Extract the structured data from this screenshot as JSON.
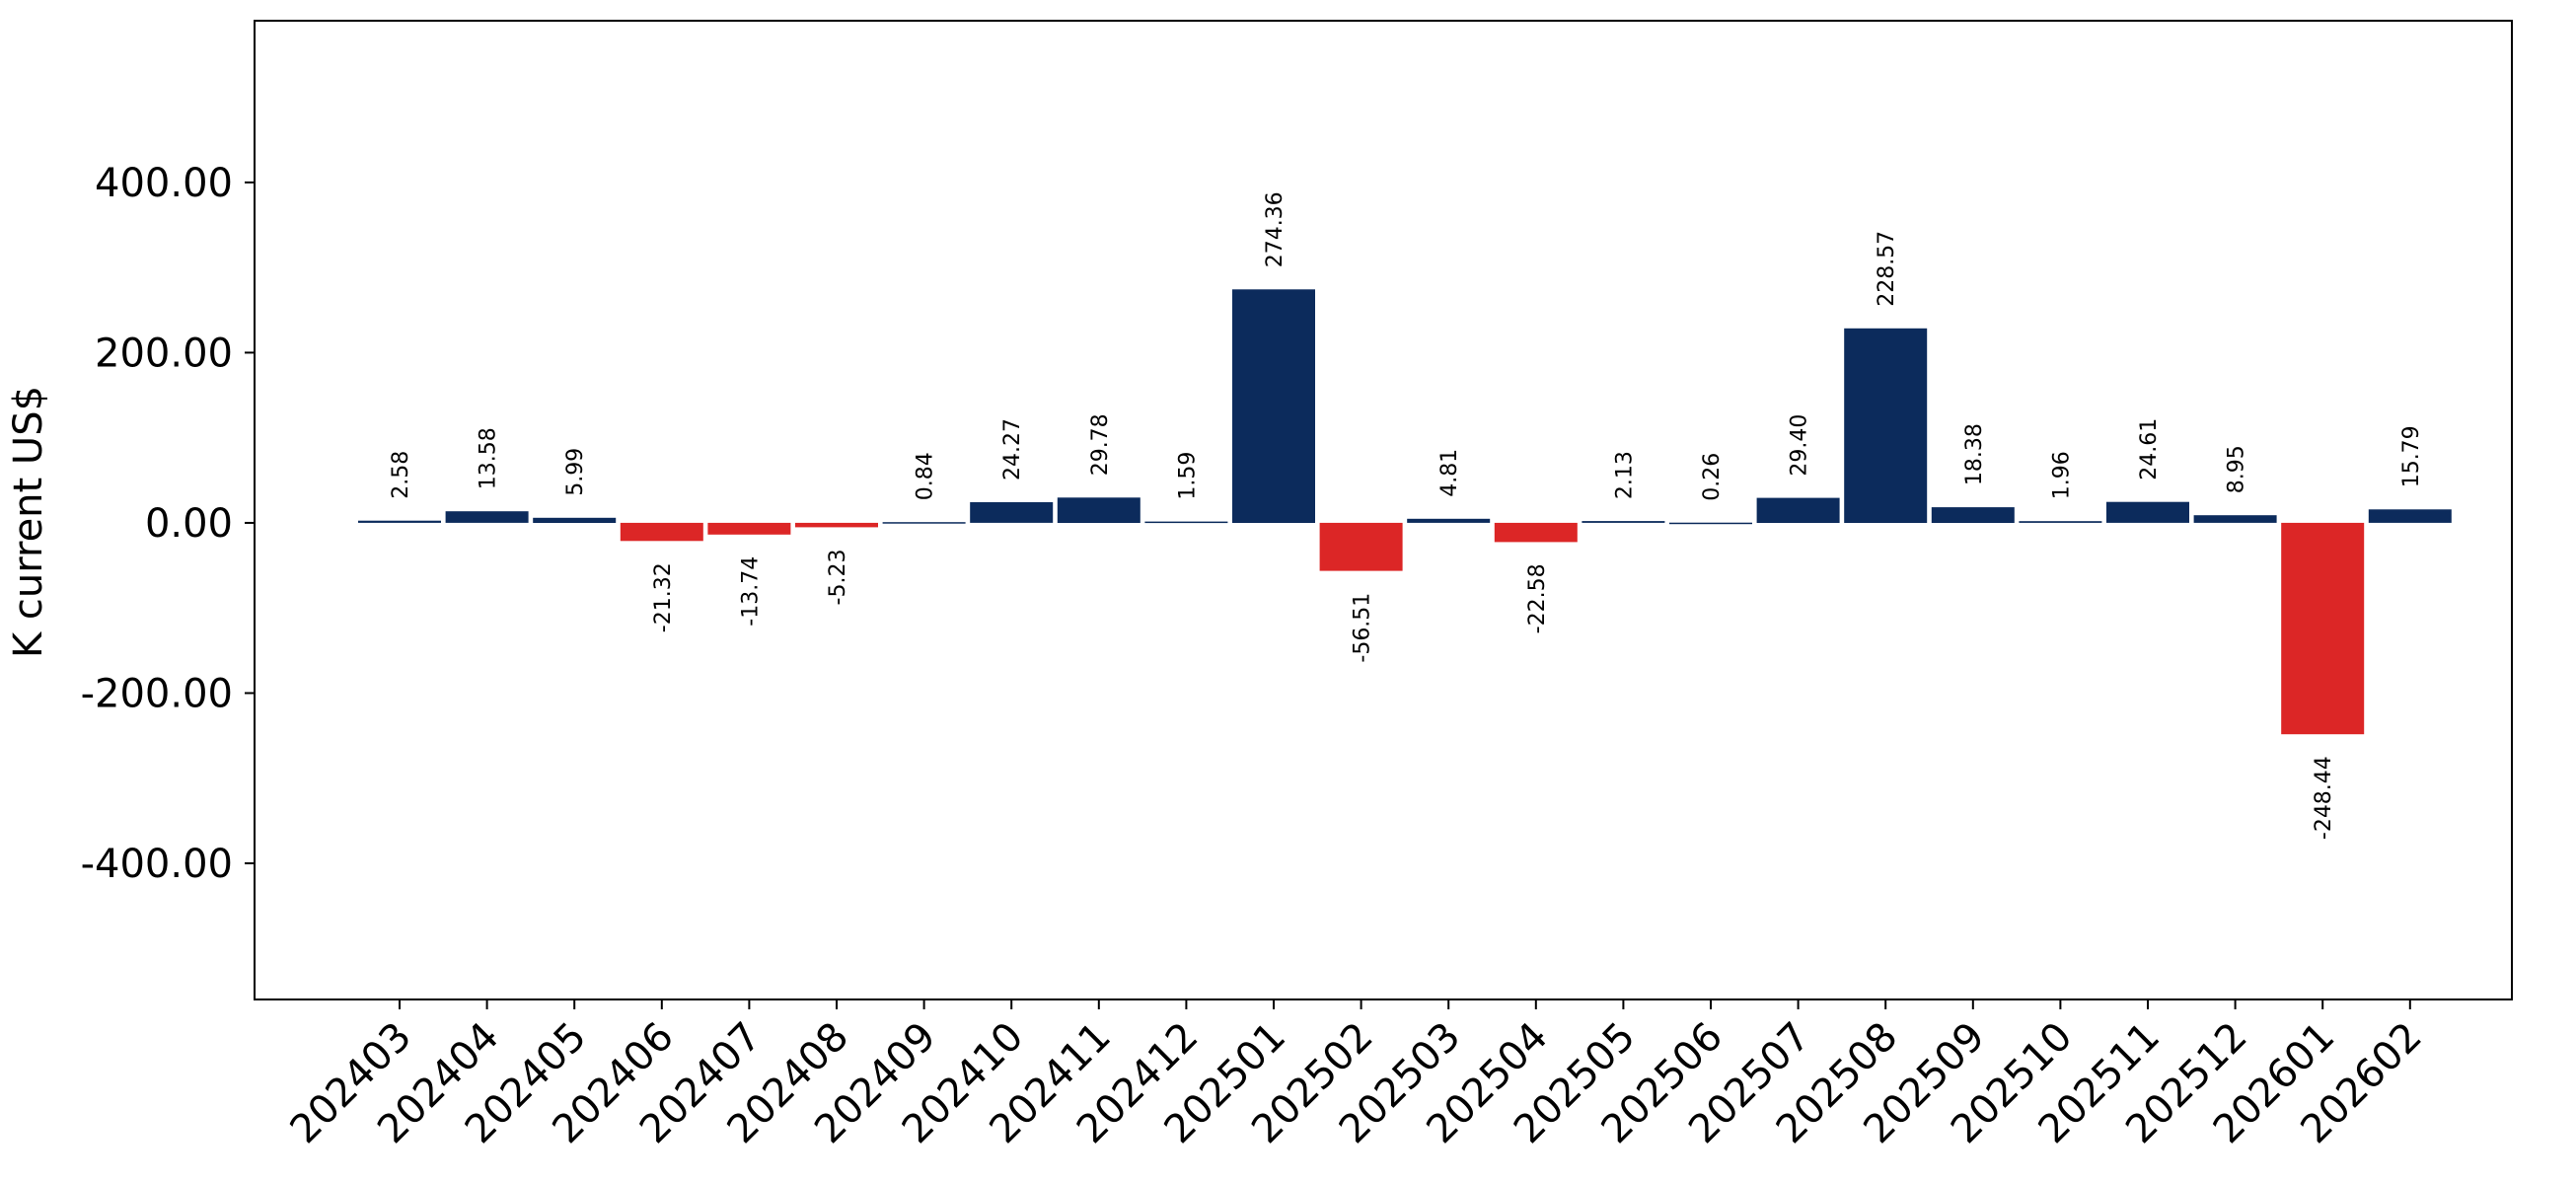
{
  "chart_data": {
    "type": "bar",
    "title": "",
    "xlabel": "",
    "ylabel": "K current US$",
    "ylim": [
      -560,
      590
    ],
    "yticks": [
      "400.00",
      "200.00",
      "0.00",
      "-200.00",
      "-400.00"
    ],
    "ytick_values": [
      400,
      200,
      0,
      -200,
      -400
    ],
    "grid": false,
    "legend": "none",
    "colors": {
      "positive": "#0c2b5c",
      "negative": "#dc2626",
      "axis": "#000000"
    },
    "categories": [
      "202403",
      "202404",
      "202405",
      "202406",
      "202407",
      "202408",
      "202409",
      "202410",
      "202411",
      "202412",
      "202501",
      "202502",
      "202503",
      "202504",
      "202505",
      "202506",
      "202507",
      "202508",
      "202509",
      "202510",
      "202511",
      "202512",
      "202601",
      "202602"
    ],
    "values": [
      2.58,
      13.58,
      5.99,
      -21.32,
      -13.74,
      -5.23,
      0.84,
      24.27,
      29.78,
      1.59,
      274.36,
      -56.51,
      4.81,
      -22.58,
      2.13,
      0.26,
      29.4,
      228.57,
      18.38,
      1.96,
      24.61,
      8.95,
      -248.44,
      15.79
    ],
    "value_labels": [
      "2.58",
      "13.58",
      "5.99",
      "-21.32",
      "-13.74",
      "-5.23",
      "0.84",
      "24.27",
      "29.78",
      "1.59",
      "274.36",
      "-56.51",
      "4.81",
      "-22.58",
      "2.13",
      "0.26",
      "29.40",
      "228.57",
      "18.38",
      "1.96",
      "24.61",
      "8.95",
      "-248.44",
      "15.79"
    ]
  }
}
